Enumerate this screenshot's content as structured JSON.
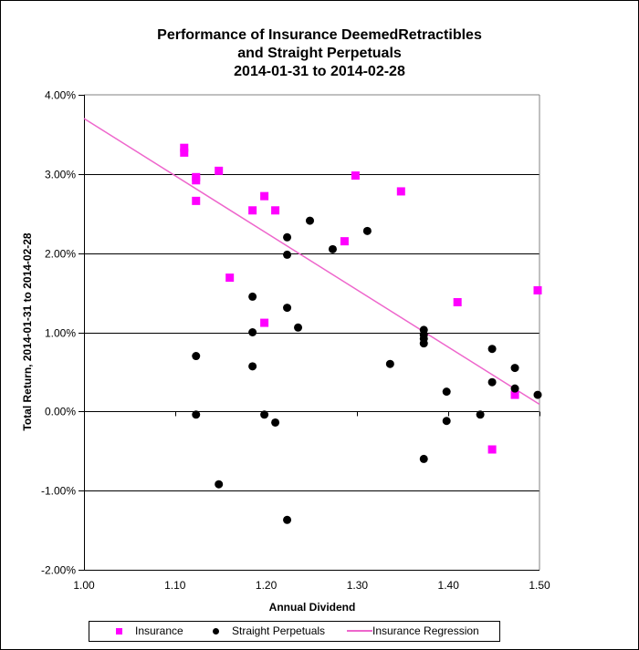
{
  "chart_data": {
    "type": "scatter",
    "title_lines": [
      "Performance of Insurance DeemedRetractibles",
      "and Straight Perpetuals",
      "2014-01-31 to 2014-02-28"
    ],
    "xlabel": "Annual Dividend",
    "ylabel": "Total Return, 2014-01-31  to 2014-02-28",
    "xlim": [
      1.0,
      1.5
    ],
    "ylim": [
      -2.0,
      4.0
    ],
    "x_ticks": [
      "1.00",
      "1.10",
      "1.20",
      "1.30",
      "1.40",
      "1.50"
    ],
    "x_tick_values": [
      1.0,
      1.1,
      1.2,
      1.3,
      1.4,
      1.5
    ],
    "y_ticks": [
      "4.00%",
      "3.00%",
      "2.00%",
      "1.00%",
      "0.00%",
      "-1.00%",
      "-2.00%"
    ],
    "y_tick_values": [
      4.0,
      3.0,
      2.0,
      1.0,
      0.0,
      -1.0,
      -2.0
    ],
    "grid": "horizontal",
    "legend_position": "bottom",
    "series": [
      {
        "name": "Insurance",
        "marker": "square",
        "color": "#ff00ff",
        "points": [
          [
            1.11,
            3.33
          ],
          [
            1.11,
            3.27
          ],
          [
            1.123,
            2.96
          ],
          [
            1.123,
            2.92
          ],
          [
            1.123,
            2.66
          ],
          [
            1.148,
            3.04
          ],
          [
            1.16,
            1.69
          ],
          [
            1.185,
            2.54
          ],
          [
            1.198,
            2.72
          ],
          [
            1.198,
            1.12
          ],
          [
            1.21,
            2.54
          ],
          [
            1.286,
            2.15
          ],
          [
            1.298,
            2.98
          ],
          [
            1.348,
            2.78
          ],
          [
            1.41,
            1.38
          ],
          [
            1.448,
            -0.48
          ],
          [
            1.473,
            0.21
          ],
          [
            1.498,
            1.53
          ]
        ]
      },
      {
        "name": "Straight Perpetuals",
        "marker": "circle",
        "color": "#000000",
        "points": [
          [
            1.123,
            0.7
          ],
          [
            1.123,
            -0.04
          ],
          [
            1.148,
            -0.92
          ],
          [
            1.185,
            1.45
          ],
          [
            1.185,
            1.0
          ],
          [
            1.185,
            0.57
          ],
          [
            1.198,
            -0.04
          ],
          [
            1.21,
            -0.14
          ],
          [
            1.223,
            2.2
          ],
          [
            1.223,
            1.98
          ],
          [
            1.223,
            1.31
          ],
          [
            1.223,
            -1.37
          ],
          [
            1.235,
            1.06
          ],
          [
            1.248,
            2.41
          ],
          [
            1.273,
            2.05
          ],
          [
            1.311,
            2.28
          ],
          [
            1.336,
            0.6
          ],
          [
            1.373,
            1.03
          ],
          [
            1.373,
            0.97
          ],
          [
            1.373,
            0.92
          ],
          [
            1.373,
            0.86
          ],
          [
            1.373,
            -0.6
          ],
          [
            1.398,
            0.25
          ],
          [
            1.398,
            -0.12
          ],
          [
            1.435,
            -0.04
          ],
          [
            1.448,
            0.79
          ],
          [
            1.448,
            0.37
          ],
          [
            1.473,
            0.55
          ],
          [
            1.473,
            0.29
          ],
          [
            1.498,
            0.21
          ]
        ]
      },
      {
        "name": "Insurance Regression",
        "type": "line",
        "color": "#ee66cc",
        "points": [
          [
            1.0,
            3.7
          ],
          [
            1.5,
            0.09
          ]
        ]
      }
    ]
  },
  "legend": {
    "items": [
      {
        "label": "Insurance"
      },
      {
        "label": "Straight Perpetuals"
      },
      {
        "label": "Insurance Regression"
      }
    ]
  }
}
